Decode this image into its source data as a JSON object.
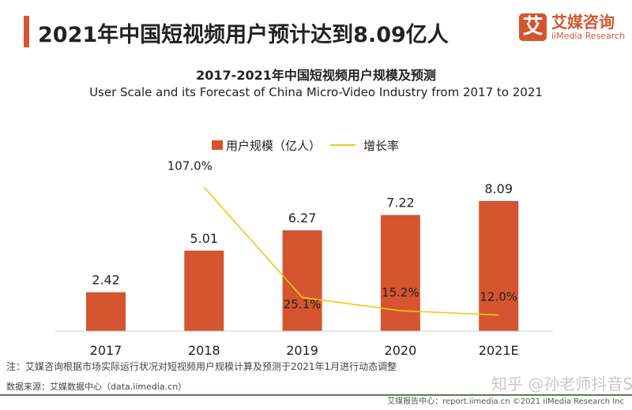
{
  "header": {
    "title": "2021年中国短视频用户预计达到8.09亿人"
  },
  "logo": {
    "mark": "艾",
    "cn": "艾媒咨询",
    "en": "iiMedia Research"
  },
  "chart_data": {
    "type": "bar",
    "title": "2017-2021年中国短视频用户规模及预测",
    "subtitle": "User Scale and its Forecast of China Micro-Video Industry from 2017 to 2021",
    "categories": [
      "2017",
      "2018",
      "2019",
      "2020",
      "2021E"
    ],
    "series": [
      {
        "name": "用户规模（亿人）",
        "type": "bar",
        "color": "#d4552f",
        "values": [
          2.42,
          5.01,
          6.27,
          7.22,
          8.09
        ],
        "labels": [
          "2.42",
          "5.01",
          "6.27",
          "7.22",
          "8.09"
        ]
      },
      {
        "name": "增长率",
        "type": "line",
        "color": "#f2c811",
        "values": [
          null,
          107.0,
          25.1,
          15.2,
          12.0
        ],
        "labels": [
          "",
          "107.0%",
          "25.1%",
          "15.2%",
          "12.0%"
        ]
      }
    ],
    "legend": "top",
    "grid": false
  },
  "footer": {
    "note": "注：艾媒咨询根据市场实际运行状况对短视频用户规模计算及预测于2021年1月进行动态调整",
    "source": "数据来源：艾媒数据中心（data.iimedia.cn）",
    "watermark": "知乎 @孙老师抖音SEO",
    "copyright": "艾媒报告中心：report.iimedia.cn  ©2021  iiMedia Research Inc"
  }
}
